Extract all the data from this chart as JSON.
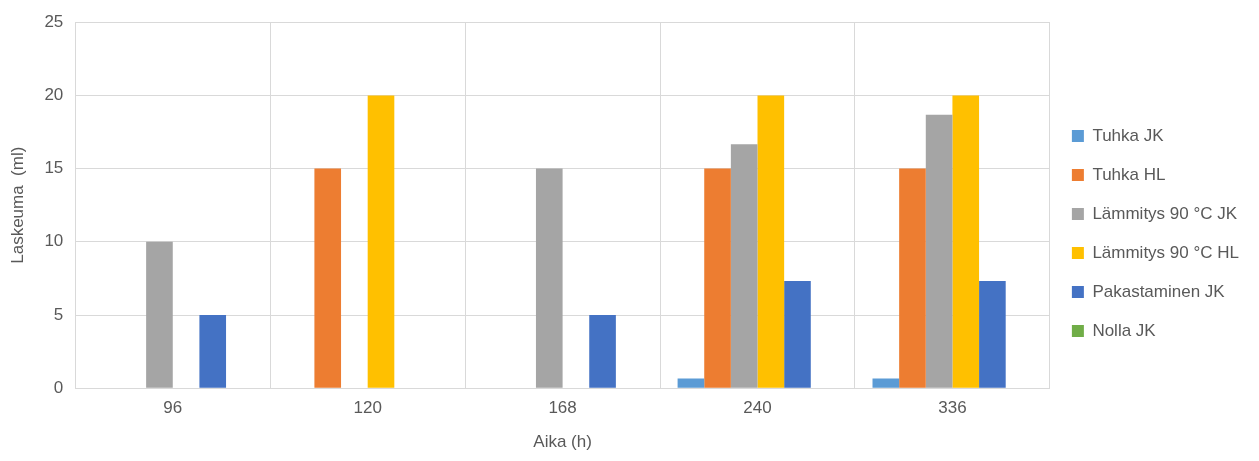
{
  "chart_data": {
    "type": "bar",
    "xlabel": "Aika (h)",
    "ylabel": "Laskeuma  (ml)",
    "categories": [
      "96",
      "120",
      "168",
      "240",
      "336"
    ],
    "series": [
      {
        "name": "Tuhka JK",
        "color": "#5b9bd5",
        "values": [
          0,
          0,
          0,
          0.67,
          0.67
        ]
      },
      {
        "name": "Tuhka HL",
        "color": "#ed7d31",
        "values": [
          0,
          15,
          0,
          15,
          15
        ]
      },
      {
        "name": "Lämmitys 90 °C JK",
        "color": "#a5a5a5",
        "values": [
          10,
          0,
          15,
          16.67,
          18.67
        ]
      },
      {
        "name": "Lämmitys 90 °C HL",
        "color": "#ffc000",
        "values": [
          0,
          20,
          0,
          20,
          20
        ]
      },
      {
        "name": "Pakastaminen JK",
        "color": "#4472c4",
        "values": [
          5,
          0,
          5,
          7.33,
          7.33
        ]
      },
      {
        "name": "Nolla JK",
        "color": "#70ad47",
        "values": [
          0,
          0,
          0,
          0,
          0
        ]
      }
    ],
    "ylim": [
      0,
      25
    ],
    "yticks": [
      0,
      5,
      10,
      15,
      20,
      25
    ],
    "grid": true,
    "legend": "right"
  }
}
